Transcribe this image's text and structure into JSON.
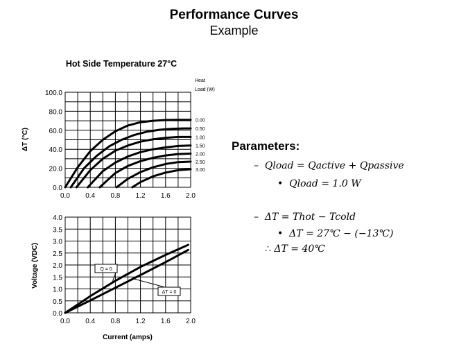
{
  "slide": {
    "title": "Performance Curves",
    "subtitle": "Example"
  },
  "parameters": {
    "heading": "Parameters:",
    "lines": [
      {
        "marker": "–",
        "text": "Qload = Qactive + Qpassive"
      },
      {
        "marker": "•",
        "text": "Qload = 1.0 W"
      },
      {
        "marker": "–",
        "text": "ΔT = Thot − Tcold"
      },
      {
        "marker": "•",
        "text": "ΔT = 27℃ − (−13℃)"
      },
      {
        "marker": "∴",
        "text": "ΔT = 40℃"
      }
    ]
  },
  "chart_data": [
    {
      "type": "line",
      "title": "Hot Side Temperature 27°C",
      "xlabel": "",
      "ylabel": "ΔT (°C)",
      "xlim": [
        0,
        2.0
      ],
      "ylim": [
        0,
        100
      ],
      "xticks": [
        "0.0",
        "0.4",
        "0.8",
        "1.2",
        "1.6",
        "2.0"
      ],
      "yticks": [
        "0.0",
        "20.0",
        "40.0",
        "60.0",
        "80.0",
        "100.0"
      ],
      "grid": true,
      "legend_title": [
        "Heat",
        "Load (W)"
      ],
      "series": [
        {
          "name": "0.00",
          "x": [
            0.0,
            0.2,
            0.4,
            0.6,
            0.8,
            1.0,
            1.2,
            1.4,
            1.6,
            1.8,
            2.0
          ],
          "y": [
            0,
            21,
            38,
            50,
            59,
            65,
            68.5,
            70,
            70.8,
            71,
            71
          ]
        },
        {
          "name": "0.50",
          "x": [
            0.09,
            0.3,
            0.5,
            0.7,
            0.9,
            1.1,
            1.3,
            1.5,
            1.7,
            1.9,
            2.0
          ],
          "y": [
            0,
            20,
            33,
            43,
            50,
            55,
            58.5,
            60.5,
            61.5,
            62,
            62
          ]
        },
        {
          "name": "1.00",
          "x": [
            0.18,
            0.4,
            0.6,
            0.8,
            1.0,
            1.2,
            1.4,
            1.6,
            1.8,
            2.0
          ],
          "y": [
            0,
            18,
            30,
            38.5,
            44,
            48,
            50.5,
            52,
            53,
            53
          ]
        },
        {
          "name": "1.50",
          "x": [
            0.36,
            0.6,
            0.8,
            1.0,
            1.2,
            1.4,
            1.6,
            1.8,
            2.0
          ],
          "y": [
            0,
            17,
            26,
            32.5,
            37,
            40,
            42,
            43.5,
            44
          ]
        },
        {
          "name": "2.00",
          "x": [
            0.55,
            0.8,
            1.0,
            1.2,
            1.4,
            1.6,
            1.8,
            2.0
          ],
          "y": [
            0,
            15,
            22.5,
            27.5,
            31,
            33.5,
            35,
            35.5
          ]
        },
        {
          "name": "2.50",
          "x": [
            0.82,
            1.0,
            1.2,
            1.4,
            1.6,
            1.8,
            2.0
          ],
          "y": [
            0,
            9,
            16,
            21,
            24.5,
            26.5,
            27
          ]
        },
        {
          "name": "3.00",
          "x": [
            1.07,
            1.2,
            1.4,
            1.6,
            1.8,
            2.0
          ],
          "y": [
            0,
            5.5,
            11.5,
            15.5,
            18,
            19
          ]
        }
      ]
    },
    {
      "type": "line",
      "title": "",
      "xlabel": "Current (amps)",
      "ylabel": "Voltage (VDC)",
      "xlim": [
        0,
        2.0
      ],
      "ylim": [
        0,
        4.0
      ],
      "xticks": [
        "0.0",
        "0.4",
        "0.8",
        "1.2",
        "1.6",
        "2.0"
      ],
      "yticks": [
        "0.0",
        "0.5",
        "1.0",
        "1.5",
        "2.0",
        "2.5",
        "3.0",
        "3.5",
        "4.0"
      ],
      "grid": true,
      "series": [
        {
          "name": "Q = 0",
          "x": [
            0.0,
            0.4,
            0.8,
            1.2,
            1.6,
            1.96
          ],
          "y": [
            0,
            0.7,
            1.34,
            1.92,
            2.42,
            2.84
          ]
        },
        {
          "name": "ΔT = 0",
          "x": [
            0.0,
            0.4,
            0.8,
            1.2,
            1.6,
            1.96
          ],
          "y": [
            0,
            0.52,
            1.05,
            1.58,
            2.12,
            2.63
          ]
        }
      ]
    }
  ]
}
